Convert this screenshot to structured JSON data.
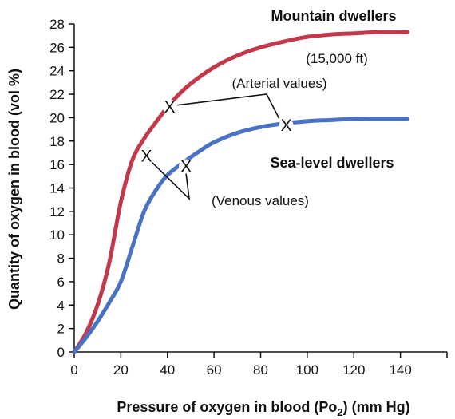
{
  "chart_data": {
    "type": "line",
    "xlabel": "Pressure of oxygen in blood (Po",
    "xlabel_subscript": "2",
    "xlabel_suffix": ") (mm Hg)",
    "ylabel": "Quantity of oxygen in blood (vol %)",
    "xlim": [
      0,
      160
    ],
    "ylim": [
      0,
      28
    ],
    "x_ticks": [
      0,
      20,
      40,
      60,
      80,
      100,
      120,
      140
    ],
    "y_ticks": [
      0,
      2,
      4,
      6,
      8,
      10,
      12,
      14,
      16,
      18,
      20,
      22,
      24,
      26,
      28
    ],
    "grid": false,
    "series": [
      {
        "name": "Mountain dwellers",
        "color": "#c1394b",
        "points": [
          [
            0,
            0
          ],
          [
            5,
            1.6
          ],
          [
            10,
            4
          ],
          [
            15,
            7.6
          ],
          [
            20,
            12.8
          ],
          [
            25,
            16.4
          ],
          [
            30,
            18.2
          ],
          [
            35,
            19.6
          ],
          [
            40,
            20.9
          ],
          [
            45,
            22
          ],
          [
            50,
            22.9
          ],
          [
            60,
            24.3
          ],
          [
            70,
            25.3
          ],
          [
            80,
            26
          ],
          [
            90,
            26.5
          ],
          [
            100,
            26.9
          ],
          [
            110,
            27.1
          ],
          [
            120,
            27.2
          ],
          [
            130,
            27.3
          ],
          [
            143,
            27.3
          ]
        ]
      },
      {
        "name": "Sea-level dwellers",
        "color": "#4a72c2",
        "points": [
          [
            0,
            0
          ],
          [
            5,
            1.2
          ],
          [
            10,
            2.6
          ],
          [
            15,
            4.2
          ],
          [
            20,
            6
          ],
          [
            25,
            9
          ],
          [
            30,
            12
          ],
          [
            35,
            13.8
          ],
          [
            40,
            15.1
          ],
          [
            47,
            16.2
          ],
          [
            55,
            17.3
          ],
          [
            60,
            17.9
          ],
          [
            70,
            18.7
          ],
          [
            80,
            19.2
          ],
          [
            90,
            19.5
          ],
          [
            100,
            19.7
          ],
          [
            110,
            19.8
          ],
          [
            120,
            19.9
          ],
          [
            130,
            19.9
          ],
          [
            143,
            19.9
          ]
        ]
      }
    ],
    "series_labels": {
      "mountain": "Mountain dwellers",
      "mountain_note": "(15,000 ft)",
      "sea_level": "Sea-level dwellers"
    },
    "markers": [
      {
        "id": "mountain-arterial",
        "x": 41,
        "y": 21,
        "symbol": "X"
      },
      {
        "id": "sea-level-arterial",
        "x": 91,
        "y": 19.4,
        "symbol": "X"
      },
      {
        "id": "mountain-venous",
        "x": 31,
        "y": 16.8,
        "symbol": "X"
      },
      {
        "id": "sea-level-venous",
        "x": 48,
        "y": 15.9,
        "symbol": "X"
      }
    ],
    "annotations": {
      "arterial": "(Arterial values)",
      "venous": "(Venous values)"
    }
  }
}
